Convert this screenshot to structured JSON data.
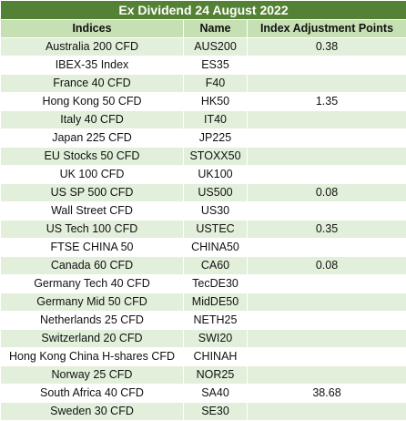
{
  "title": "Ex Dividend 24 August 2022",
  "headers": {
    "indices": "Indices",
    "name": "Name",
    "points": "Index Adjustment Points"
  },
  "rows": [
    {
      "index": "Australia 200 CFD",
      "name": "AUS200",
      "points": "0.38"
    },
    {
      "index": "IBEX-35 Index",
      "name": "ES35",
      "points": ""
    },
    {
      "index": "France 40 CFD",
      "name": "F40",
      "points": ""
    },
    {
      "index": "Hong Kong 50 CFD",
      "name": "HK50",
      "points": "1.35"
    },
    {
      "index": "Italy 40 CFD",
      "name": "IT40",
      "points": ""
    },
    {
      "index": "Japan 225 CFD",
      "name": "JP225",
      "points": ""
    },
    {
      "index": "EU Stocks 50 CFD",
      "name": "STOXX50",
      "points": ""
    },
    {
      "index": "UK 100 CFD",
      "name": "UK100",
      "points": ""
    },
    {
      "index": "US SP 500 CFD",
      "name": "US500",
      "points": "0.08"
    },
    {
      "index": "Wall Street CFD",
      "name": "US30",
      "points": ""
    },
    {
      "index": "US Tech 100 CFD",
      "name": "USTEC",
      "points": "0.35"
    },
    {
      "index": "FTSE CHINA 50",
      "name": "CHINA50",
      "points": ""
    },
    {
      "index": "Canada 60 CFD",
      "name": "CA60",
      "points": "0.08"
    },
    {
      "index": "Germany Tech 40 CFD",
      "name": "TecDE30",
      "points": ""
    },
    {
      "index": "Germany Mid 50 CFD",
      "name": "MidDE50",
      "points": ""
    },
    {
      "index": "Netherlands 25 CFD",
      "name": "NETH25",
      "points": ""
    },
    {
      "index": "Switzerland 20 CFD",
      "name": "SWI20",
      "points": ""
    },
    {
      "index": "Hong Kong China H-shares CFD",
      "name": "CHINAH",
      "points": ""
    },
    {
      "index": "Norway 25 CFD",
      "name": "NOR25",
      "points": ""
    },
    {
      "index": "South Africa 40 CFD",
      "name": "SA40",
      "points": "38.68"
    },
    {
      "index": "Sweden 30 CFD",
      "name": "SE30",
      "points": ""
    }
  ],
  "colors": {
    "title_bg": "#548235",
    "header_bg": "#c6e0b4",
    "band_bg": "#e2efda",
    "plain_bg": "#ffffff"
  }
}
